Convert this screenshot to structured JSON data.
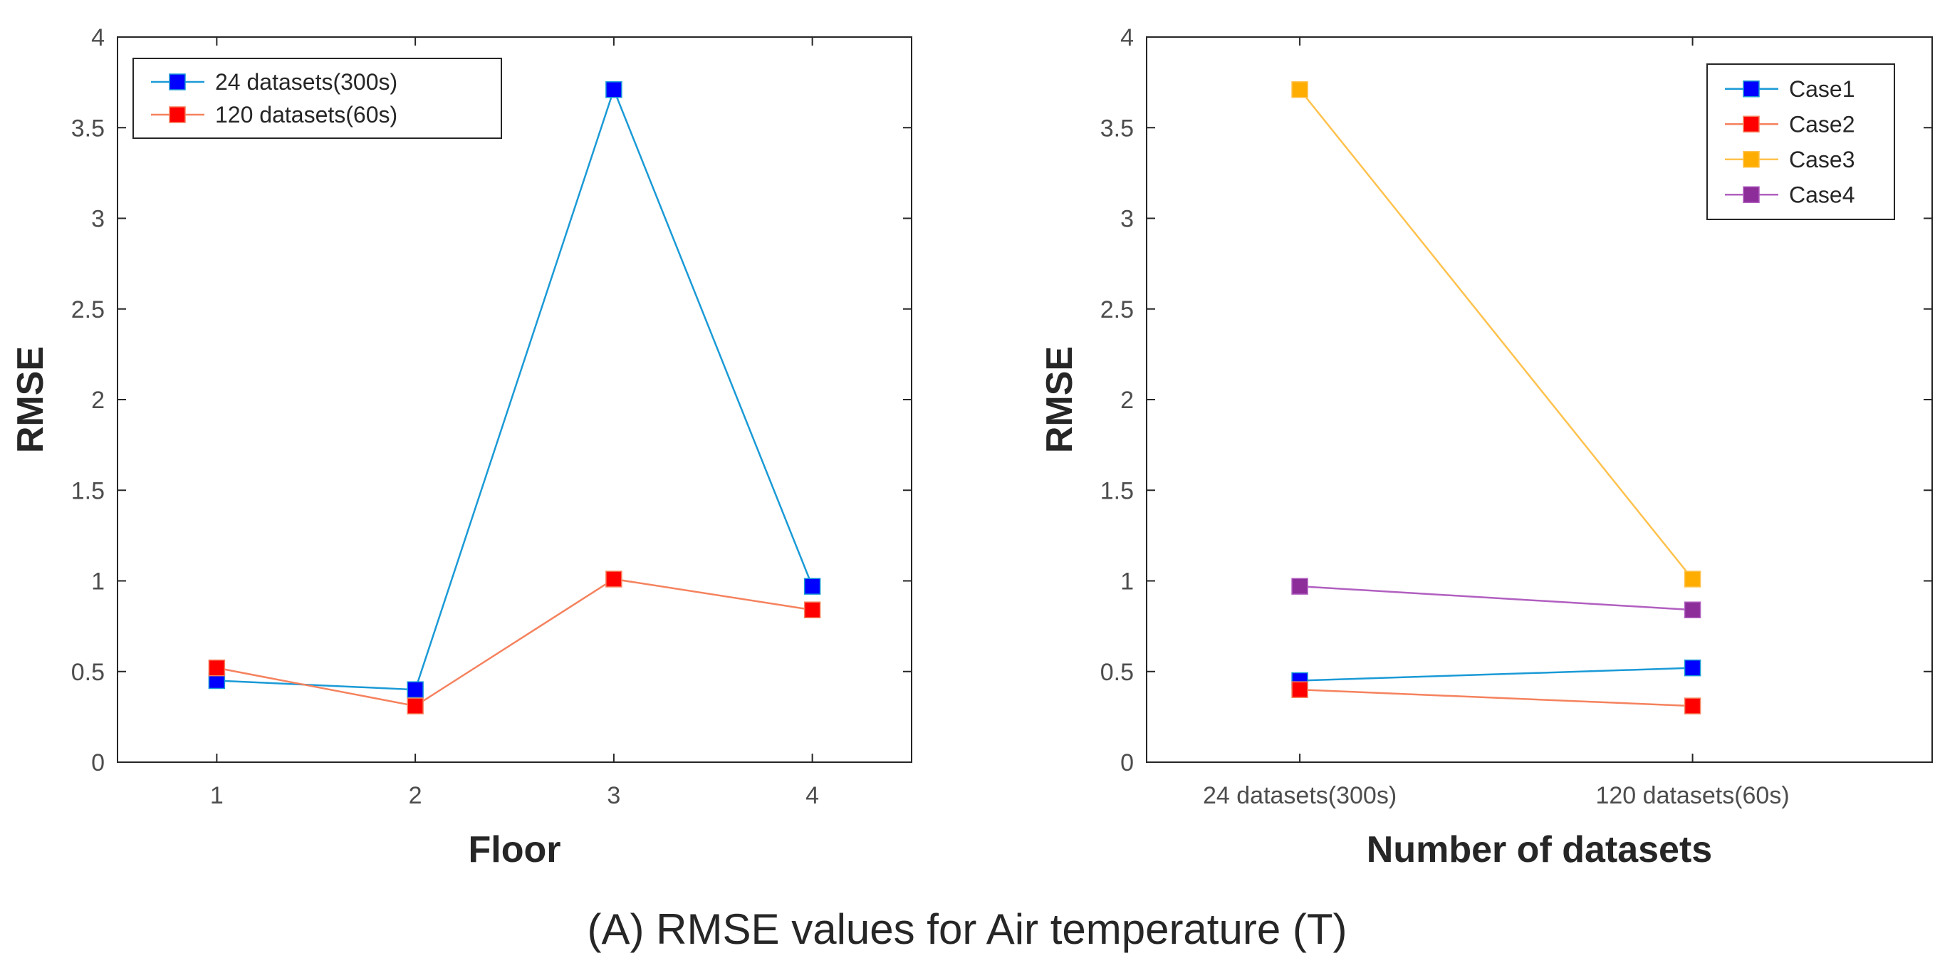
{
  "caption": "(A) RMSE values for Air temperature (T)",
  "chart_data": [
    {
      "type": "line",
      "title": "",
      "xlabel": "Floor",
      "ylabel": "RMSE",
      "categories": [
        "1",
        "2",
        "3",
        "4"
      ],
      "xlim": [
        0.5,
        4.5
      ],
      "ylim": [
        0,
        4
      ],
      "yticks": [
        "0",
        "0.5",
        "1",
        "1.5",
        "2",
        "2.5",
        "3",
        "3.5",
        "4"
      ],
      "grid": false,
      "legend_position": "top-left",
      "series": [
        {
          "name": "24 datasets(300s)",
          "values": [
            0.45,
            0.4,
            3.71,
            0.97
          ],
          "line_color": "#1a9ad6",
          "marker_color": "#0000ff"
        },
        {
          "name": "120 datasets(60s)",
          "values": [
            0.52,
            0.31,
            1.01,
            0.84
          ],
          "line_color": "#f5825e",
          "marker_color": "#ff0000"
        }
      ]
    },
    {
      "type": "line",
      "title": "",
      "xlabel": "Number of datasets",
      "ylabel": "RMSE",
      "categories": [
        "24 datasets(300s)",
        "120 datasets(60s)"
      ],
      "ylim": [
        0,
        4
      ],
      "yticks": [
        "0",
        "0.5",
        "1",
        "1.5",
        "2",
        "2.5",
        "3",
        "3.5",
        "4"
      ],
      "grid": false,
      "legend_position": "top-right",
      "series": [
        {
          "name": "Case1",
          "values": [
            0.45,
            0.52
          ],
          "line_color": "#1a9ad6",
          "marker_color": "#0000ff"
        },
        {
          "name": "Case2",
          "values": [
            0.4,
            0.31
          ],
          "line_color": "#f5825e",
          "marker_color": "#ff0000"
        },
        {
          "name": "Case3",
          "values": [
            3.71,
            1.01
          ],
          "line_color": "#ffc24d",
          "marker_color": "#ffad00"
        },
        {
          "name": "Case4",
          "values": [
            0.97,
            0.84
          ],
          "line_color": "#b15fc0",
          "marker_color": "#8c2d9a"
        }
      ]
    }
  ]
}
